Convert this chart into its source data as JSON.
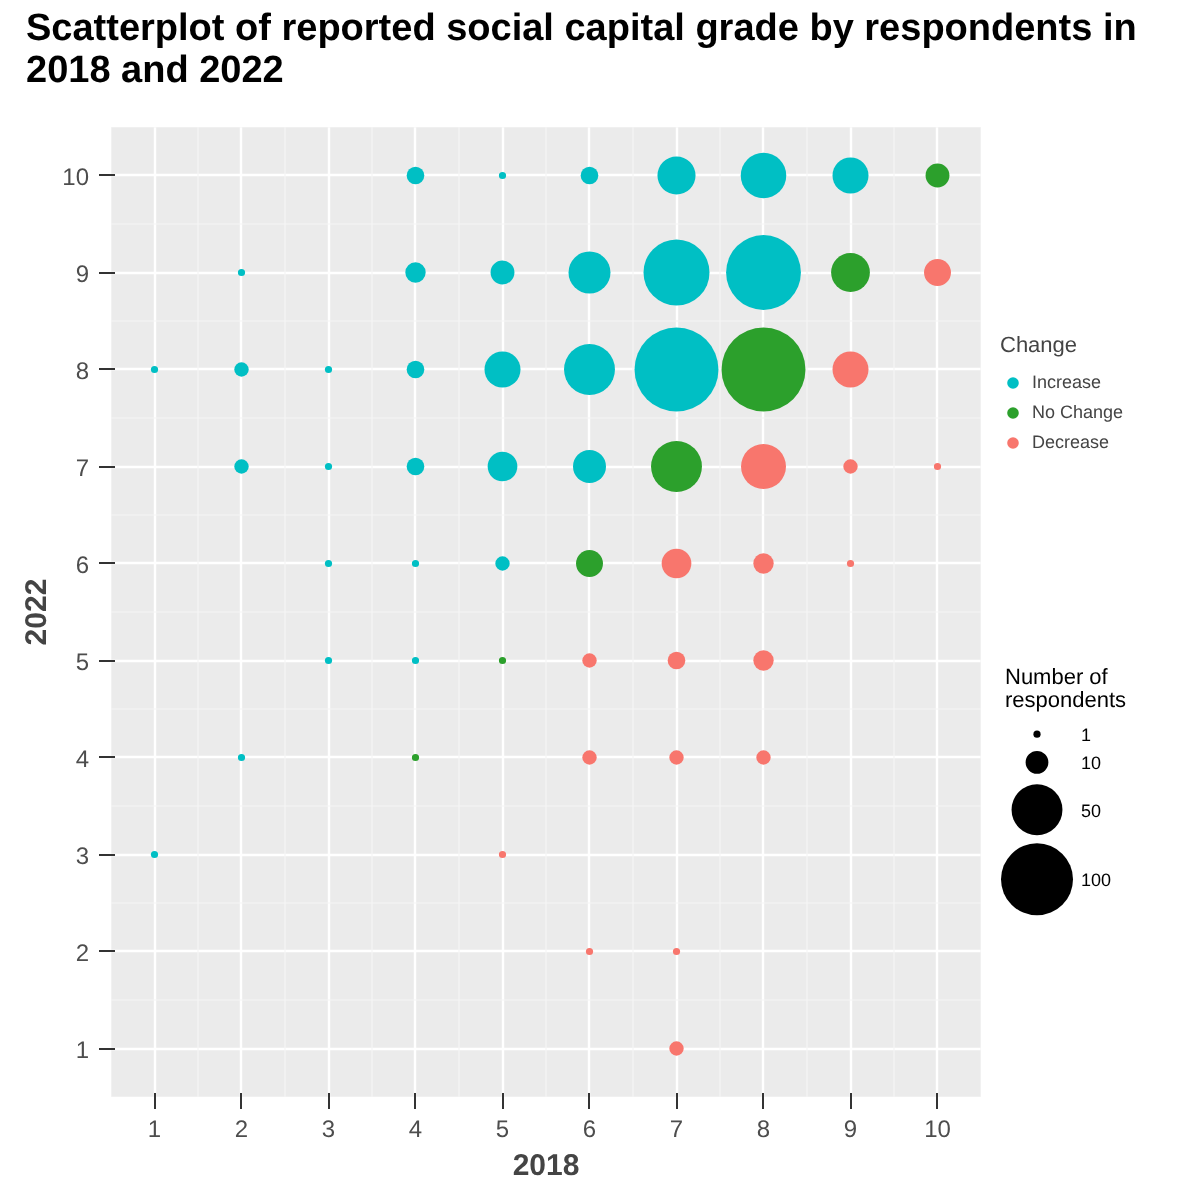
{
  "chart_data": {
    "type": "bubble",
    "title": "Scatterplot of reported social capital grade by respondents in 2018 and 2022",
    "xlabel": "2018",
    "ylabel": "2022",
    "legend_title": "Change",
    "annotations": [
      "Number of respondents"
    ],
    "legend": "right",
    "grid": true,
    "marker": "circle",
    "xlim": [
      0.5,
      10.5
    ],
    "ylim": [
      0.5,
      10.5
    ],
    "xticks": [
      1,
      2,
      3,
      4,
      5,
      6,
      7,
      8,
      9,
      10
    ],
    "yticks": [
      1,
      2,
      3,
      4,
      5,
      6,
      7,
      8,
      9,
      10
    ],
    "size_legend": [
      1,
      10,
      50,
      100
    ],
    "series": [
      {
        "name": "Increase",
        "color": "#00bfc4",
        "x": [
          4,
          5,
          6,
          7,
          8,
          9,
          2,
          4,
          5,
          6,
          7,
          8,
          1,
          2,
          3,
          4,
          5,
          6,
          7,
          2,
          3,
          4,
          5,
          6,
          3,
          4,
          5,
          3,
          4,
          2,
          1
        ],
        "values": [
          10,
          10,
          10,
          10,
          10,
          10,
          9,
          9,
          9,
          9,
          9,
          9,
          8,
          8,
          8,
          8,
          8,
          8,
          8,
          7,
          7,
          7,
          7,
          7,
          6,
          6,
          6,
          5,
          5,
          4,
          3
        ],
        "sizes": [
          6,
          1,
          6,
          28,
          40,
          25,
          1,
          8,
          11,
          34,
          84,
          108,
          1,
          4,
          1,
          6,
          25,
          50,
          136,
          4,
          1,
          6,
          17,
          21,
          1,
          1,
          4,
          1,
          1,
          1,
          1
        ]
      },
      {
        "name": "No Change",
        "color": "#2ca02c",
        "x": [
          10,
          9,
          8,
          7,
          6,
          5,
          4
        ],
        "values": [
          10,
          9,
          8,
          7,
          6,
          5,
          4
        ],
        "sizes": [
          11,
          29,
          136,
          50,
          14,
          1,
          1
        ]
      },
      {
        "name": "Decrease",
        "color": "#f8766d",
        "x": [
          10,
          9,
          8,
          9,
          10,
          7,
          8,
          9,
          6,
          7,
          8,
          6,
          7,
          8,
          5,
          6,
          7,
          7
        ],
        "values": [
          9,
          8,
          7,
          7,
          7,
          6,
          6,
          6,
          5,
          5,
          5,
          4,
          4,
          4,
          3,
          2,
          2,
          1
        ],
        "sizes": [
          14,
          25,
          39,
          4,
          1,
          17,
          8,
          1,
          4,
          6,
          8,
          4,
          4,
          4,
          1,
          1,
          1,
          4
        ]
      }
    ]
  }
}
